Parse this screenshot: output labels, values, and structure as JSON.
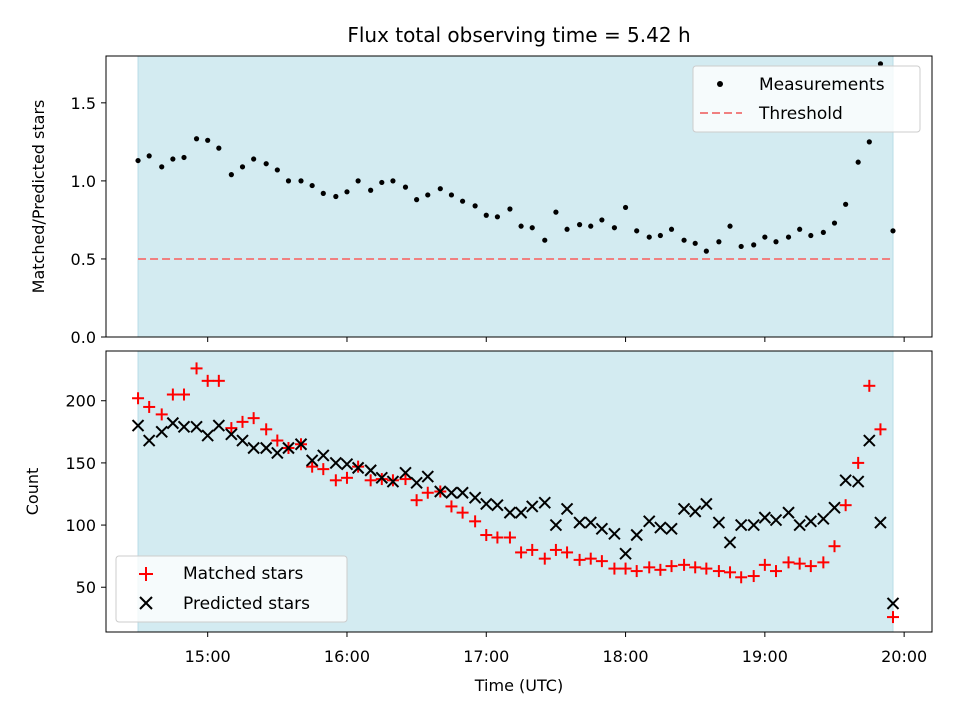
{
  "figure": {
    "title": "Flux total observing time = 5.42 h",
    "xlabel": "Time (UTC)",
    "xticks": [
      15,
      16,
      17,
      18,
      19,
      20
    ],
    "xtick_labels": [
      "15:00",
      "16:00",
      "17:00",
      "18:00",
      "19:00",
      "20:00"
    ],
    "xlim": [
      14.27,
      20.2
    ],
    "shade_span": [
      14.5,
      19.92
    ],
    "shade_color": "#d3ebf1"
  },
  "chart_data": [
    {
      "type": "scatter",
      "ylabel": "Matched/Predicted stars",
      "ylim": [
        0,
        1.8
      ],
      "yticks": [
        0.0,
        0.5,
        1.0,
        1.5
      ],
      "ytick_labels": [
        "0.0",
        "0.5",
        "1.0",
        "1.5"
      ],
      "legend_position": "top-right",
      "series": [
        {
          "name": "Measurements",
          "color": "#000000",
          "marker": "dot",
          "x": [
            14.5,
            14.58,
            14.67,
            14.75,
            14.83,
            14.92,
            15.0,
            15.08,
            15.17,
            15.25,
            15.33,
            15.42,
            15.5,
            15.58,
            15.67,
            15.75,
            15.83,
            15.92,
            16.0,
            16.08,
            16.17,
            16.25,
            16.33,
            16.42,
            16.5,
            16.58,
            16.67,
            16.75,
            16.83,
            16.92,
            17.0,
            17.08,
            17.17,
            17.25,
            17.33,
            17.42,
            17.5,
            17.58,
            17.67,
            17.75,
            17.83,
            17.92,
            18.0,
            18.08,
            18.17,
            18.25,
            18.33,
            18.42,
            18.5,
            18.58,
            18.67,
            18.75,
            18.83,
            18.92,
            19.0,
            19.08,
            19.17,
            19.25,
            19.33,
            19.42,
            19.5,
            19.58,
            19.67,
            19.75,
            19.83,
            19.92
          ],
          "y": [
            1.13,
            1.16,
            1.09,
            1.14,
            1.15,
            1.27,
            1.26,
            1.21,
            1.04,
            1.09,
            1.14,
            1.11,
            1.07,
            1.0,
            1.0,
            0.97,
            0.92,
            0.9,
            0.93,
            1.0,
            0.94,
            0.99,
            1.0,
            0.96,
            0.88,
            0.91,
            0.95,
            0.91,
            0.87,
            0.84,
            0.78,
            0.77,
            0.82,
            0.71,
            0.7,
            0.62,
            0.8,
            0.69,
            0.72,
            0.71,
            0.75,
            0.7,
            0.83,
            0.68,
            0.64,
            0.65,
            0.69,
            0.62,
            0.6,
            0.55,
            0.61,
            0.71,
            0.58,
            0.59,
            0.64,
            0.61,
            0.64,
            0.69,
            0.65,
            0.67,
            0.73,
            0.85,
            1.12,
            1.25,
            1.75,
            0.68
          ]
        },
        {
          "name": "Threshold",
          "color": "#f08080",
          "style": "dashed",
          "x": [
            14.5,
            19.92
          ],
          "y": [
            0.5,
            0.5
          ]
        }
      ]
    },
    {
      "type": "scatter",
      "ylabel": "Count",
      "ylim": [
        14,
        240
      ],
      "yticks": [
        50,
        100,
        150,
        200
      ],
      "ytick_labels": [
        "50",
        "100",
        "150",
        "200"
      ],
      "legend_position": "bottom-left",
      "series": [
        {
          "name": "Matched stars",
          "color": "#ff0000",
          "marker": "plus",
          "x": [
            14.5,
            14.58,
            14.67,
            14.75,
            14.83,
            14.92,
            15.0,
            15.08,
            15.17,
            15.25,
            15.33,
            15.42,
            15.5,
            15.58,
            15.67,
            15.75,
            15.83,
            15.92,
            16.0,
            16.08,
            16.17,
            16.25,
            16.33,
            16.42,
            16.5,
            16.58,
            16.67,
            16.75,
            16.83,
            16.92,
            17.0,
            17.08,
            17.17,
            17.25,
            17.33,
            17.42,
            17.5,
            17.58,
            17.67,
            17.75,
            17.83,
            17.92,
            18.0,
            18.08,
            18.17,
            18.25,
            18.33,
            18.42,
            18.5,
            18.58,
            18.67,
            18.75,
            18.83,
            18.92,
            19.0,
            19.08,
            19.17,
            19.25,
            19.33,
            19.42,
            19.5,
            19.58,
            19.67,
            19.75,
            19.83,
            19.92
          ],
          "y": [
            202,
            195,
            189,
            205,
            205,
            226,
            216,
            216,
            178,
            183,
            186,
            177,
            168,
            162,
            165,
            147,
            145,
            136,
            138,
            147,
            136,
            137,
            136,
            137,
            120,
            126,
            127,
            115,
            110,
            103,
            92,
            90,
            90,
            78,
            80,
            73,
            80,
            78,
            72,
            73,
            71,
            65,
            65,
            63,
            66,
            64,
            67,
            68,
            66,
            65,
            63,
            62,
            58,
            59,
            68,
            63,
            70,
            69,
            67,
            70,
            83,
            116,
            150,
            212,
            177,
            26
          ]
        },
        {
          "name": "Predicted stars",
          "color": "#000000",
          "marker": "x",
          "x": [
            14.5,
            14.58,
            14.67,
            14.75,
            14.83,
            14.92,
            15.0,
            15.08,
            15.17,
            15.25,
            15.33,
            15.42,
            15.5,
            15.58,
            15.67,
            15.75,
            15.83,
            15.92,
            16.0,
            16.08,
            16.17,
            16.25,
            16.33,
            16.42,
            16.5,
            16.58,
            16.67,
            16.75,
            16.83,
            16.92,
            17.0,
            17.08,
            17.17,
            17.25,
            17.33,
            17.42,
            17.5,
            17.58,
            17.67,
            17.75,
            17.83,
            17.92,
            18.0,
            18.08,
            18.17,
            18.25,
            18.33,
            18.42,
            18.5,
            18.58,
            18.67,
            18.75,
            18.83,
            18.92,
            19.0,
            19.08,
            19.17,
            19.25,
            19.33,
            19.42,
            19.5,
            19.58,
            19.67,
            19.75,
            19.83,
            19.92
          ],
          "y": [
            180,
            168,
            175,
            182,
            179,
            179,
            172,
            180,
            173,
            168,
            162,
            162,
            158,
            162,
            165,
            152,
            156,
            150,
            149,
            146,
            144,
            138,
            135,
            142,
            134,
            139,
            127,
            126,
            126,
            122,
            117,
            116,
            110,
            110,
            115,
            118,
            100,
            113,
            102,
            102,
            97,
            93,
            77,
            92,
            103,
            98,
            97,
            113,
            111,
            117,
            102,
            86,
            100,
            100,
            106,
            104,
            110,
            100,
            103,
            105,
            114,
            136,
            135,
            168,
            102,
            37
          ]
        }
      ]
    }
  ]
}
